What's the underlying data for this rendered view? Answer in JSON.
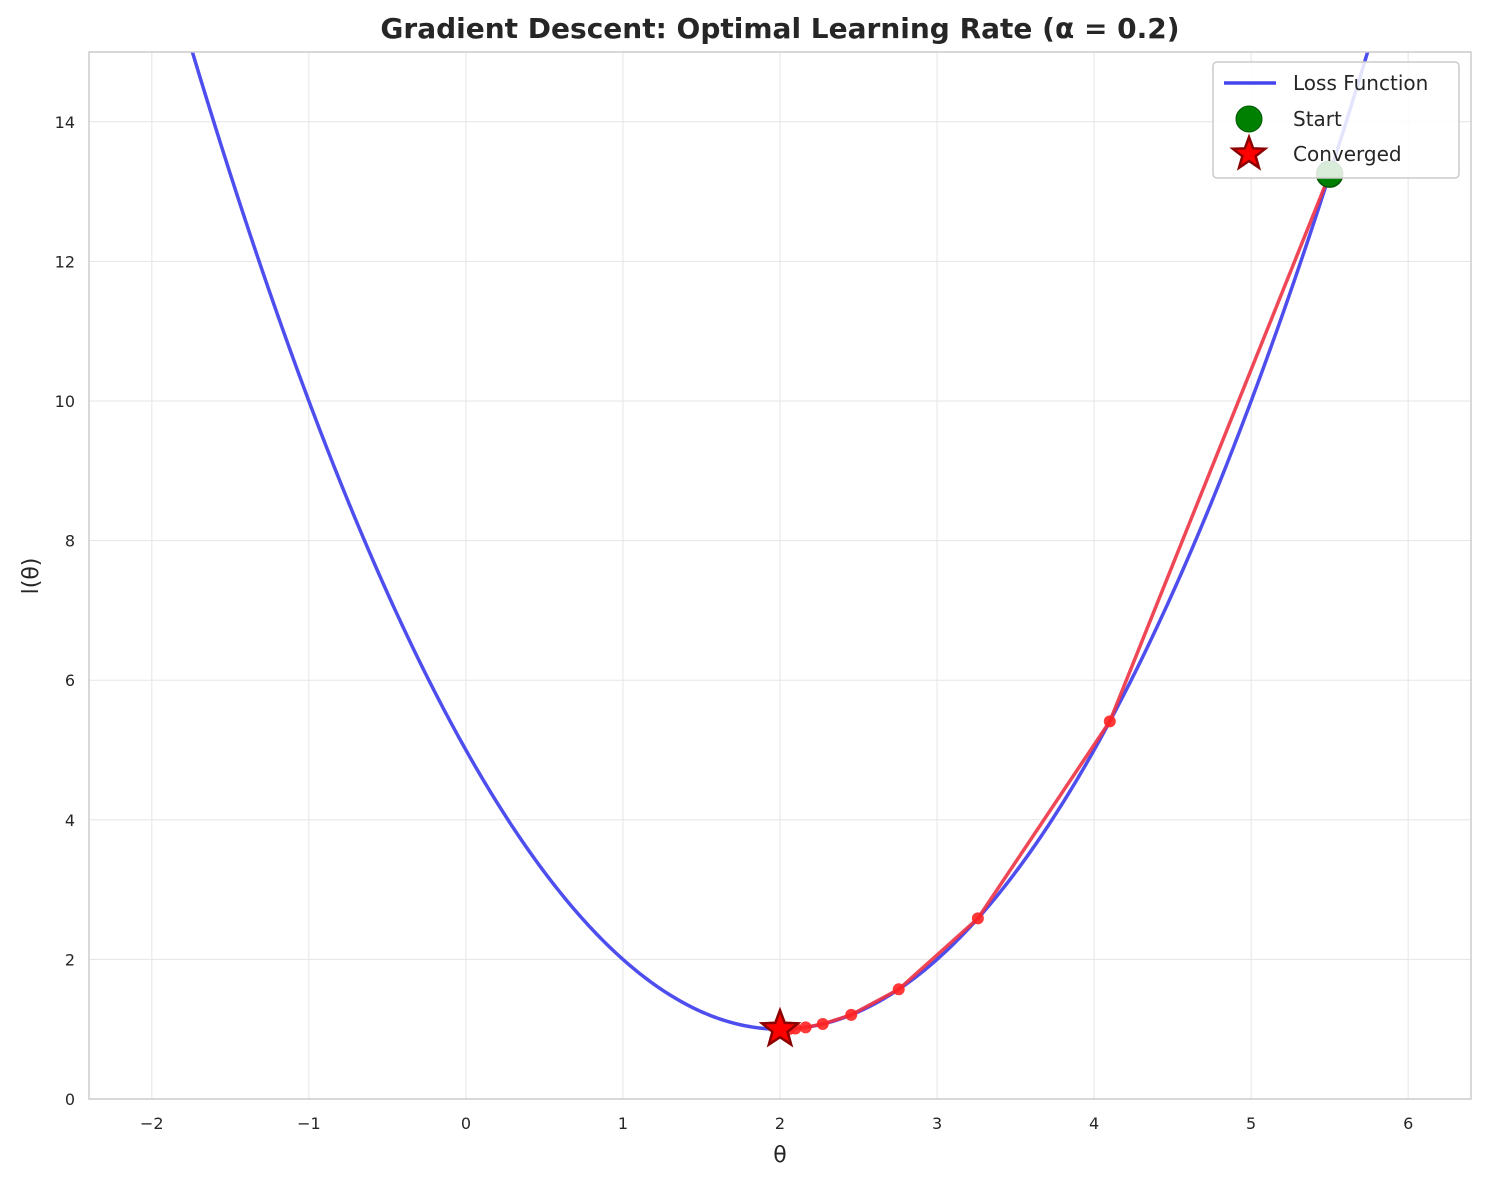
{
  "chart_data": {
    "type": "line",
    "title": "Gradient Descent: Optimal Learning Rate (α = 0.2)",
    "xlabel": "θ",
    "ylabel": "l(θ)",
    "xlim": [
      -2.4,
      6.4
    ],
    "ylim": [
      0,
      15
    ],
    "x_ticks": [
      -2,
      -1,
      0,
      1,
      2,
      3,
      4,
      5,
      6
    ],
    "x_tick_labels": [
      "−2",
      "−1",
      "0",
      "1",
      "2",
      "3",
      "4",
      "5",
      "6"
    ],
    "y_ticks": [
      0,
      2,
      4,
      6,
      8,
      10,
      12,
      14
    ],
    "y_tick_labels": [
      "0",
      "2",
      "4",
      "6",
      "8",
      "10",
      "12",
      "14"
    ],
    "grid": true,
    "legend_position": "top-right",
    "series": [
      {
        "name": "Loss Function",
        "kind": "line",
        "color": "#4444ee",
        "function": "(θ - 2)^2 + 1",
        "x_range": [
          -2.4,
          6.4
        ]
      },
      {
        "name": "",
        "kind": "line+markers",
        "color": "#ee3344",
        "marker_color": "#ff2222",
        "x": [
          5.5,
          4.1,
          3.26,
          2.756,
          2.4536,
          2.2722,
          2.1633,
          2.098,
          2.0588
        ],
        "y": [
          13.25,
          5.41,
          2.5876,
          1.5715,
          1.2058,
          1.0741,
          1.0267,
          1.0096,
          1.0035
        ]
      },
      {
        "name": "Start",
        "kind": "point",
        "color": "#008000",
        "x": [
          5.5
        ],
        "y": [
          13.25
        ]
      },
      {
        "name": "Converged",
        "kind": "star",
        "color": "#ff0000",
        "edge_color": "#8b0000",
        "x": [
          2.0
        ],
        "y": [
          1.0
        ]
      }
    ]
  }
}
